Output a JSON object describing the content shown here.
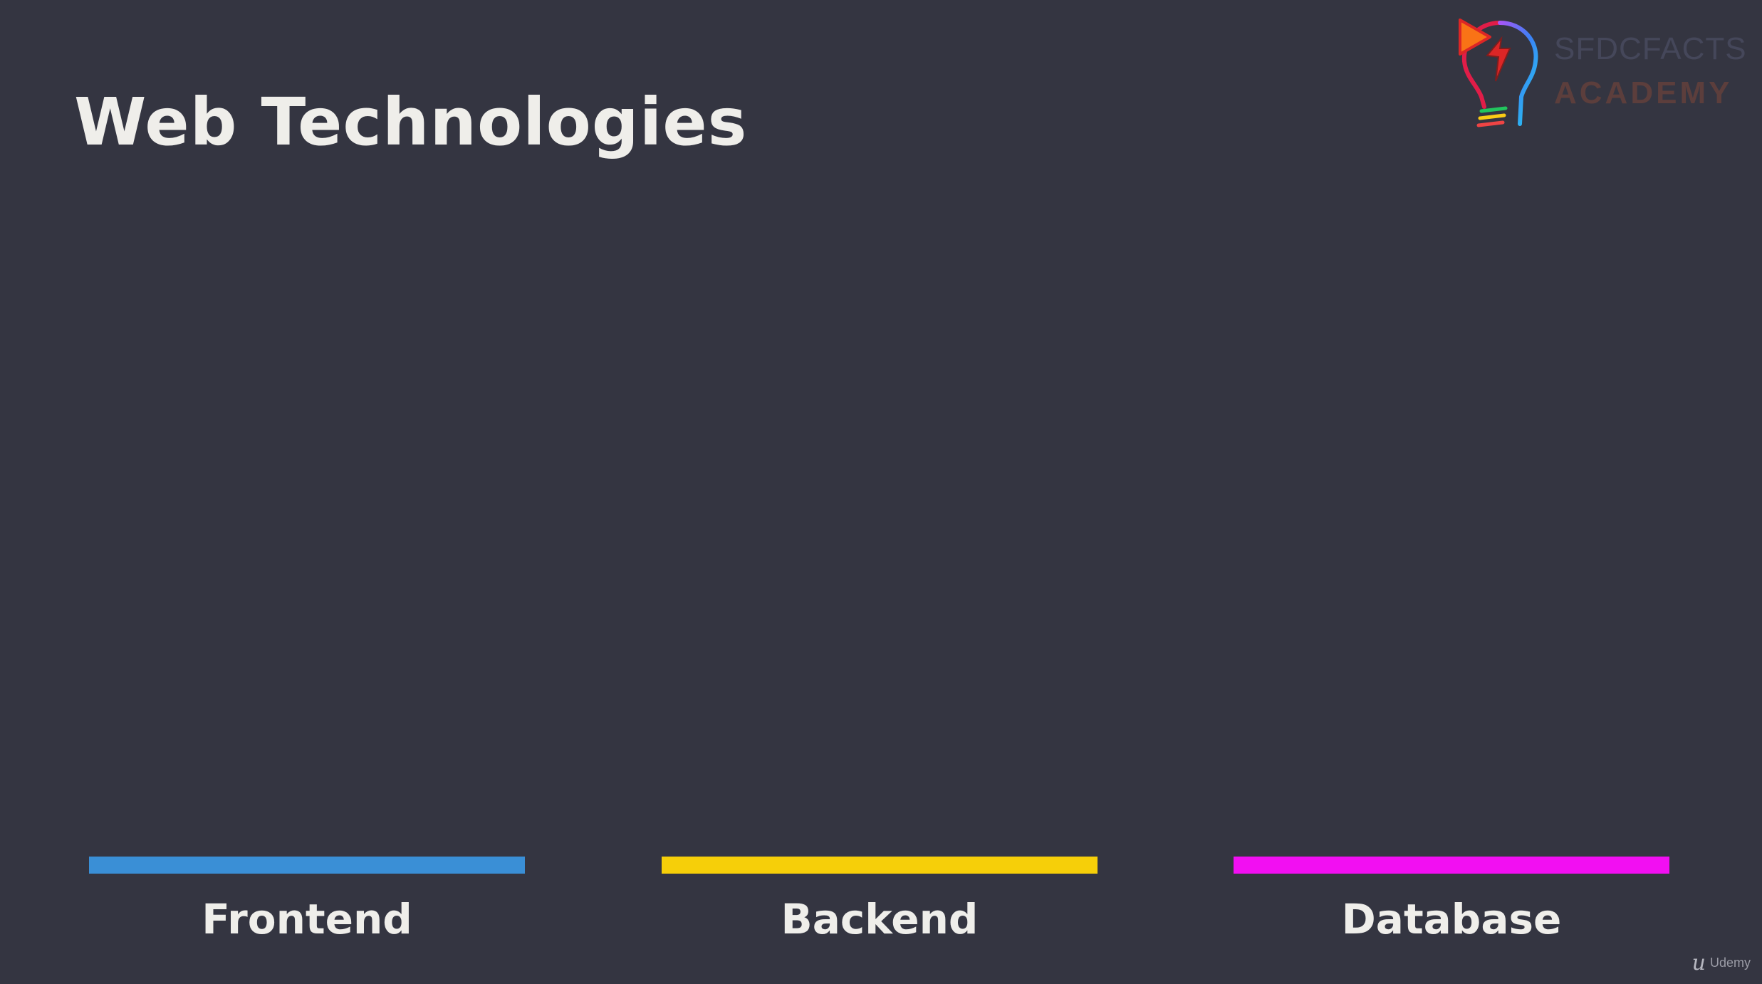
{
  "slide": {
    "title": "Web Technologies"
  },
  "logo": {
    "line1": "SFDCFACTS",
    "line2": "ACADEMY",
    "icon": "lightbulb-icon"
  },
  "columns": [
    {
      "label": "Frontend",
      "color": "#3a8fd6"
    },
    {
      "label": "Backend",
      "color": "#f6cf09"
    },
    {
      "label": "Database",
      "color": "#f20ff2"
    }
  ],
  "watermark": {
    "mark": "u",
    "text": "Udemy"
  }
}
